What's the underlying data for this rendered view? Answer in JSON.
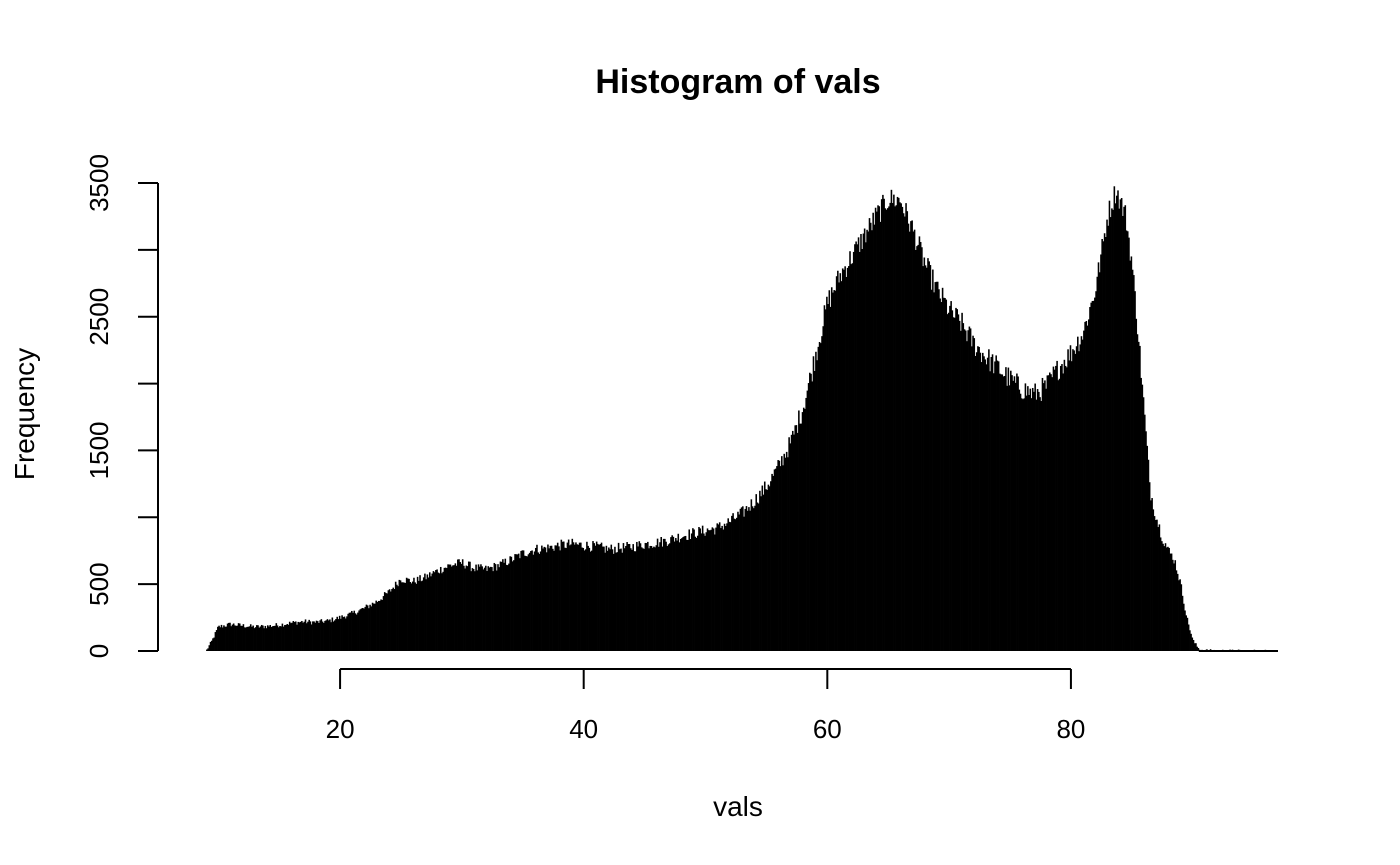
{
  "chart_data": {
    "type": "bar",
    "title": "Histogram of vals",
    "xlabel": "vals",
    "ylabel": "Frequency",
    "xlim": [
      8.5,
      97
    ],
    "ylim": [
      0,
      3500
    ],
    "x_ticks": [
      20,
      40,
      60,
      80
    ],
    "y_ticks": [
      0,
      500,
      1000,
      1500,
      2000,
      2500,
      3000,
      3500
    ],
    "x_tick_labels": [
      "20",
      "40",
      "60",
      "80"
    ],
    "y_tick_labels": [
      "0",
      "500",
      "",
      "1500",
      "",
      "2500",
      "",
      "3500"
    ],
    "bin_width": 0.1,
    "grid": false,
    "legend": "none",
    "density_profile": [
      [
        8.5,
        0
      ],
      [
        9.0,
        0
      ],
      [
        9.5,
        80
      ],
      [
        10.0,
        180
      ],
      [
        11.0,
        200
      ],
      [
        12.0,
        190
      ],
      [
        13.0,
        180
      ],
      [
        14.0,
        185
      ],
      [
        15.0,
        195
      ],
      [
        16.0,
        210
      ],
      [
        17.0,
        220
      ],
      [
        18.0,
        215
      ],
      [
        19.0,
        225
      ],
      [
        20.0,
        250
      ],
      [
        21.0,
        280
      ],
      [
        22.0,
        320
      ],
      [
        23.0,
        370
      ],
      [
        24.0,
        440
      ],
      [
        25.0,
        540
      ],
      [
        26.0,
        520
      ],
      [
        27.0,
        550
      ],
      [
        28.0,
        600
      ],
      [
        29.0,
        640
      ],
      [
        30.0,
        660
      ],
      [
        31.0,
        620
      ],
      [
        32.0,
        610
      ],
      [
        33.0,
        640
      ],
      [
        34.0,
        680
      ],
      [
        35.0,
        730
      ],
      [
        36.0,
        760
      ],
      [
        37.0,
        770
      ],
      [
        38.0,
        790
      ],
      [
        39.0,
        800
      ],
      [
        40.0,
        790
      ],
      [
        41.0,
        780
      ],
      [
        42.0,
        760
      ],
      [
        43.0,
        770
      ],
      [
        44.0,
        780
      ],
      [
        45.0,
        800
      ],
      [
        46.0,
        810
      ],
      [
        47.0,
        830
      ],
      [
        48.0,
        860
      ],
      [
        49.0,
        880
      ],
      [
        50.0,
        900
      ],
      [
        51.0,
        920
      ],
      [
        52.0,
        970
      ],
      [
        53.0,
        1030
      ],
      [
        54.0,
        1120
      ],
      [
        55.0,
        1230
      ],
      [
        56.0,
        1380
      ],
      [
        57.0,
        1560
      ],
      [
        58.0,
        1820
      ],
      [
        59.0,
        2200
      ],
      [
        60.0,
        2600
      ],
      [
        61.0,
        2800
      ],
      [
        62.0,
        2950
      ],
      [
        63.0,
        3100
      ],
      [
        64.0,
        3250
      ],
      [
        65.0,
        3380
      ],
      [
        66.0,
        3370
      ],
      [
        67.0,
        3150
      ],
      [
        68.0,
        2900
      ],
      [
        69.0,
        2700
      ],
      [
        70.0,
        2550
      ],
      [
        71.0,
        2450
      ],
      [
        72.0,
        2300
      ],
      [
        73.0,
        2200
      ],
      [
        74.0,
        2120
      ],
      [
        75.0,
        2030
      ],
      [
        76.0,
        1960
      ],
      [
        77.0,
        1920
      ],
      [
        78.0,
        1980
      ],
      [
        79.0,
        2120
      ],
      [
        80.0,
        2230
      ],
      [
        81.0,
        2380
      ],
      [
        82.0,
        2700
      ],
      [
        83.0,
        3250
      ],
      [
        83.7,
        3450
      ],
      [
        84.5,
        3250
      ],
      [
        85.0,
        2900
      ],
      [
        85.5,
        2400
      ],
      [
        86.0,
        1800
      ],
      [
        86.5,
        1200
      ],
      [
        87.0,
        1000
      ],
      [
        87.5,
        850
      ],
      [
        88.0,
        750
      ],
      [
        88.5,
        680
      ],
      [
        89.0,
        500
      ],
      [
        89.5,
        250
      ],
      [
        90.0,
        80
      ],
      [
        90.5,
        15
      ],
      [
        91.0,
        5
      ],
      [
        92.0,
        2
      ],
      [
        97.0,
        0
      ]
    ]
  }
}
